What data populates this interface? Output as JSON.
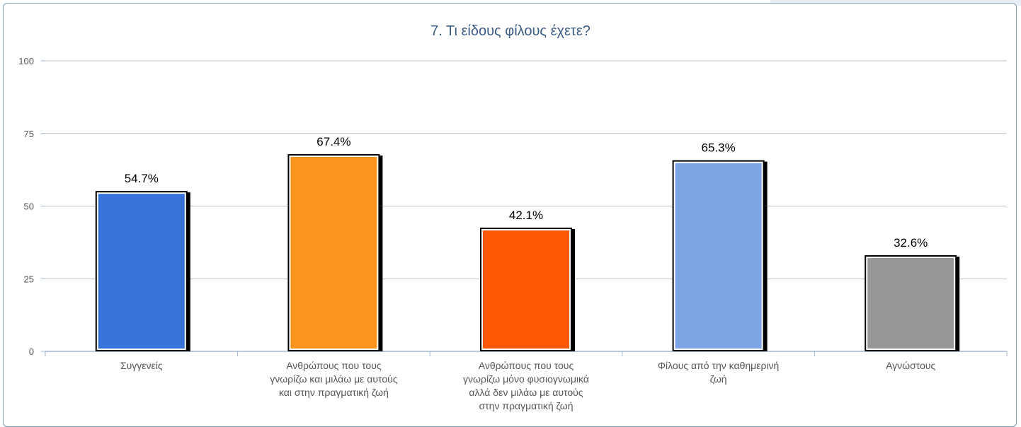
{
  "chart_data": {
    "type": "bar",
    "title": "7. Τι είδους φίλους έχετε?",
    "xlabel": "",
    "ylabel": "",
    "ylim": [
      0,
      100
    ],
    "yticks": [
      "0",
      "25",
      "50",
      "75",
      "100"
    ],
    "grid": true,
    "categories": [
      [
        "Συγγενείς"
      ],
      [
        "Ανθρώπους που τους",
        "γνωρίζω και μιλάω με αυτούς",
        "και στην πραγματική ζωή"
      ],
      [
        "Ανθρώπους που τους",
        "γνωρίζω μόνο φυσιογνωμικά",
        "αλλά δεν μιλάω με αυτούς",
        "στην πραγματική ζωή"
      ],
      [
        "Φίλους από την καθημερινή",
        "ζωή"
      ],
      [
        "Αγνώστους"
      ]
    ],
    "values": [
      54.7,
      67.4,
      42.1,
      65.3,
      32.6
    ],
    "value_labels": [
      "54.7%",
      "67.4%",
      "42.1%",
      "65.3%",
      "32.6%"
    ],
    "colors": [
      "#3873d9",
      "#fb951f",
      "#fd5905",
      "#7ea4e6",
      "#979797"
    ]
  }
}
